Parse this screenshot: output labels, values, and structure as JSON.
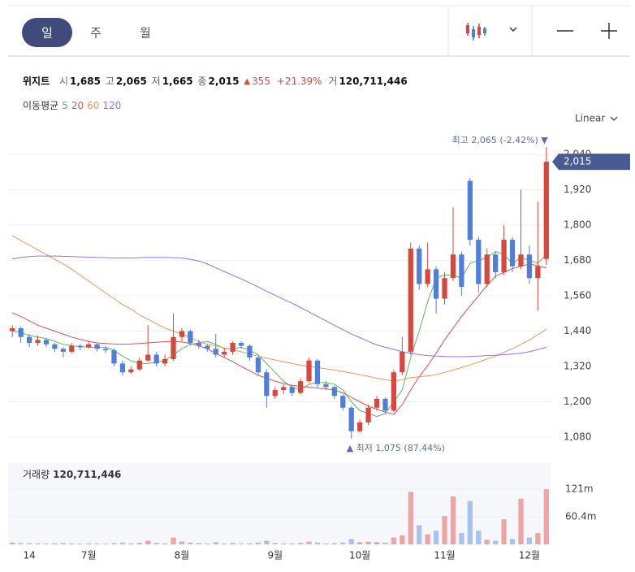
{
  "tabs": [
    "일",
    "주",
    "월"
  ],
  "header": {
    "name": "위지트",
    "open_label": "시",
    "open": "1,685",
    "high_label": "고",
    "high": "2,065",
    "low_label": "저",
    "low": "1,665",
    "close_label": "종",
    "close": "2,015",
    "change_symbol": "▲",
    "change": "355",
    "change_pct": "+21.39%",
    "volume_label": "거",
    "volume": "120,711,446"
  },
  "ma_legend_title": "이동평균",
  "scale_mode": "Linear",
  "chart_data": {
    "type": "candlestick",
    "categories": [
      null,
      null,
      "14",
      null,
      null,
      null,
      null,
      null,
      null,
      "7월",
      null,
      null,
      null,
      null,
      null,
      null,
      null,
      null,
      null,
      null,
      "8월",
      null,
      null,
      null,
      null,
      null,
      null,
      null,
      null,
      null,
      null,
      "9월",
      null,
      null,
      null,
      null,
      null,
      null,
      null,
      null,
      null,
      "10월",
      null,
      null,
      null,
      null,
      null,
      null,
      null,
      null,
      null,
      "11월",
      null,
      null,
      null,
      null,
      null,
      null,
      null,
      null,
      null,
      "12월",
      null,
      null
    ],
    "candles": {
      "open": [
        1440,
        1450,
        1420,
        1400,
        1410,
        1395,
        1380,
        1370,
        1390,
        1385,
        1395,
        1380,
        1375,
        1330,
        1300,
        1310,
        1340,
        1360,
        1330,
        1345,
        1420,
        1440,
        1400,
        1390,
        1380,
        1360,
        1370,
        1400,
        1390,
        1350,
        1300,
        1220,
        1240,
        1250,
        1230,
        1270,
        1340,
        1260,
        1250,
        1220,
        1180,
        1100,
        1130,
        1180,
        1210,
        1170,
        1300,
        1370,
        1720,
        1600,
        1650,
        1550,
        1620,
        1700,
        1950,
        1750,
        1600,
        1700,
        1640,
        1750,
        1660,
        1700,
        1620,
        1685
      ],
      "high": [
        1460,
        1455,
        1430,
        1425,
        1415,
        1400,
        1385,
        1400,
        1395,
        1405,
        1400,
        1390,
        1380,
        1340,
        1320,
        1350,
        1460,
        1370,
        1360,
        1500,
        1450,
        1445,
        1410,
        1395,
        1430,
        1380,
        1405,
        1405,
        1395,
        1355,
        1310,
        1250,
        1260,
        1255,
        1280,
        1350,
        1345,
        1270,
        1255,
        1225,
        1185,
        1140,
        1190,
        1220,
        1215,
        1310,
        1420,
        1740,
        1730,
        1740,
        1660,
        1640,
        1860,
        1710,
        1960,
        1760,
        1720,
        1710,
        1800,
        1760,
        1920,
        1730,
        1880,
        2065
      ],
      "low": [
        1420,
        1400,
        1385,
        1390,
        1385,
        1370,
        1350,
        1365,
        1375,
        1380,
        1370,
        1365,
        1320,
        1290,
        1295,
        1305,
        1335,
        1320,
        1320,
        1340,
        1405,
        1390,
        1380,
        1370,
        1350,
        1350,
        1360,
        1380,
        1340,
        1290,
        1180,
        1210,
        1225,
        1220,
        1225,
        1265,
        1250,
        1240,
        1210,
        1170,
        1075,
        1095,
        1120,
        1170,
        1160,
        1165,
        1290,
        1360,
        1580,
        1590,
        1500,
        1530,
        1610,
        1560,
        1730,
        1570,
        1590,
        1620,
        1630,
        1640,
        1650,
        1600,
        1510,
        1665
      ],
      "close": [
        1450,
        1420,
        1400,
        1410,
        1395,
        1380,
        1370,
        1390,
        1385,
        1395,
        1380,
        1375,
        1330,
        1300,
        1310,
        1340,
        1360,
        1330,
        1345,
        1420,
        1440,
        1400,
        1390,
        1380,
        1360,
        1370,
        1400,
        1390,
        1350,
        1300,
        1220,
        1240,
        1250,
        1230,
        1270,
        1340,
        1260,
        1250,
        1220,
        1180,
        1100,
        1130,
        1180,
        1210,
        1170,
        1300,
        1370,
        1720,
        1600,
        1650,
        1550,
        1620,
        1700,
        1590,
        1750,
        1600,
        1700,
        1640,
        1750,
        1660,
        1700,
        1620,
        1660,
        2015
      ]
    },
    "up_color": "#d9463e",
    "down_color": "#4f7fd8",
    "series": [
      {
        "name": "5",
        "color": "#5cb85c",
        "values": [
          1440,
          1435,
          1425,
          1420,
          1415,
          1405,
          1395,
          1390,
          1388,
          1385,
          1385,
          1385,
          1375,
          1355,
          1340,
          1330,
          1330,
          1335,
          1340,
          1360,
          1380,
          1395,
          1400,
          1405,
          1395,
          1380,
          1380,
          1385,
          1375,
          1360,
          1330,
          1300,
          1270,
          1250,
          1240,
          1260,
          1265,
          1265,
          1260,
          1240,
          1200,
          1170,
          1160,
          1150,
          1160,
          1200,
          1240,
          1350,
          1440,
          1540,
          1620,
          1630,
          1630,
          1620,
          1670,
          1680,
          1690,
          1710,
          1700,
          1670,
          1690,
          1680,
          1670,
          1700
        ]
      },
      {
        "name": "20",
        "color": "#d9534f",
        "values": [
          1502,
          1490,
          1475,
          1460,
          1450,
          1440,
          1430,
          1420,
          1412,
          1405,
          1400,
          1398,
          1396,
          1395,
          1396,
          1398,
          1400,
          1402,
          1404,
          1405,
          1403,
          1398,
          1390,
          1380,
          1364,
          1350,
          1336,
          1320,
          1305,
          1290,
          1280,
          1270,
          1262,
          1256,
          1252,
          1250,
          1247,
          1244,
          1240,
          1230,
          1215,
          1200,
          1185,
          1175,
          1165,
          1157,
          1190,
          1240,
          1285,
          1323,
          1365,
          1410,
          1450,
          1490,
          1525,
          1560,
          1595,
          1626,
          1640,
          1652,
          1660,
          1668,
          1662,
          1654
        ]
      },
      {
        "name": "60",
        "color": "#f0955a",
        "values": [
          1764,
          1748,
          1732,
          1716,
          1700,
          1684,
          1668,
          1650,
          1630,
          1610,
          1590,
          1570,
          1550,
          1530,
          1515,
          1495,
          1480,
          1465,
          1450,
          1440,
          1430,
          1418,
          1405,
          1395,
          1390,
          1383,
          1377,
          1370,
          1362,
          1355,
          1348,
          1342,
          1336,
          1330,
          1325,
          1320,
          1316,
          1312,
          1308,
          1303,
          1298,
          1292,
          1286,
          1280,
          1275,
          1270,
          1275,
          1282,
          1285,
          1288,
          1292,
          1300,
          1308,
          1316,
          1325,
          1335,
          1345,
          1355,
          1368,
          1380,
          1395,
          1410,
          1428,
          1447
        ]
      },
      {
        "name": "120",
        "color": "#9b6cf0",
        "values": [
          1685,
          1690,
          1693,
          1695,
          1695,
          1695,
          1694,
          1693,
          1692,
          1691,
          1690,
          1689,
          1688,
          1688,
          1688,
          1689,
          1690,
          1690,
          1690,
          1689,
          1688,
          1684,
          1678,
          1668,
          1655,
          1642,
          1630,
          1617,
          1604,
          1590,
          1575,
          1562,
          1548,
          1535,
          1520,
          1505,
          1490,
          1475,
          1460,
          1445,
          1430,
          1418,
          1405,
          1393,
          1385,
          1378,
          1370,
          1365,
          1360,
          1357,
          1355,
          1354,
          1353,
          1353,
          1354,
          1355,
          1357,
          1358,
          1360,
          1362,
          1365,
          1370,
          1377,
          1385
        ]
      }
    ],
    "ylim": [
      1020,
      2100
    ],
    "yticks": [
      {
        "value": 2040,
        "label": "2,040"
      },
      {
        "value": 1920,
        "label": "1,920"
      },
      {
        "value": 1800,
        "label": "1,800"
      },
      {
        "value": 1680,
        "label": "1,680"
      },
      {
        "value": 1560,
        "label": "1,560"
      },
      {
        "value": 1440,
        "label": "1,440"
      },
      {
        "value": 1320,
        "label": "1,320"
      },
      {
        "value": 1200,
        "label": "1,200"
      },
      {
        "value": 1080,
        "label": "1,080"
      }
    ],
    "grid": true,
    "max_annotation": "최고 2,065 (-2.42%) ▼",
    "min_annotation": "▲ 최저 1,075 (87.44%)",
    "current_price": {
      "value": 2015,
      "label": "2,015"
    },
    "volume": {
      "title": "거래량",
      "last": "120,711,446",
      "values": [
        4000000,
        3000000,
        2500000,
        2000000,
        2000000,
        2500000,
        3000000,
        2000000,
        1500000,
        2000000,
        2000000,
        1500000,
        3000000,
        4000000,
        2000000,
        3000000,
        8000000,
        3000000,
        2000000,
        15000000,
        6000000,
        4000000,
        3000000,
        2000000,
        5000000,
        2000000,
        3000000,
        2000000,
        2500000,
        4000000,
        8000000,
        3000000,
        2000000,
        2000000,
        3000000,
        6000000,
        4000000,
        2000000,
        2500000,
        4000000,
        12000000,
        5000000,
        6000000,
        5000000,
        4000000,
        15000000,
        20000000,
        115000000,
        42000000,
        22000000,
        30000000,
        62000000,
        105000000,
        25000000,
        95000000,
        30000000,
        10000000,
        8000000,
        55000000,
        12000000,
        100000000,
        15000000,
        25000000,
        120711446
      ],
      "ylim": [
        0,
        178000000
      ],
      "yticks": [
        {
          "value": 121000000,
          "label": "121m"
        },
        {
          "value": 60400000,
          "label": "60.4m"
        }
      ]
    }
  }
}
